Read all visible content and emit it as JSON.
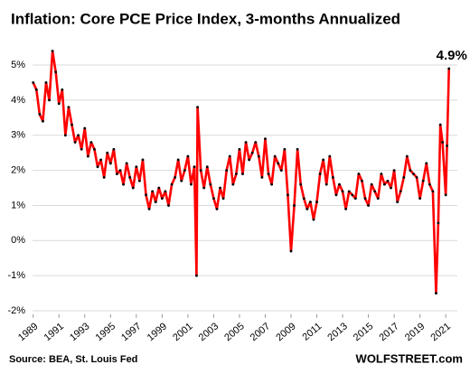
{
  "chart_data": {
    "type": "line",
    "title": "Inflation: Core PCE Price Index, 3-months Annualized",
    "annotation": "4.9%",
    "source": "Source: BEA, St. Louis Fed",
    "credit": "WOLFSTREET.com",
    "color": "#ff0000",
    "marker_color": "#000000",
    "grid": true,
    "xlim": [
      1988.95,
      2021.9
    ],
    "xticks": [
      1989,
      1991,
      1993,
      1995,
      1997,
      1999,
      2001,
      2003,
      2005,
      2007,
      2009,
      2011,
      2013,
      2015,
      2017,
      2019,
      2021
    ],
    "ylim": [
      -2.1,
      5.5
    ],
    "yticks": [
      {
        "value": -2,
        "label": "-2%"
      },
      {
        "value": -1,
        "label": "-1%"
      },
      {
        "value": 0,
        "label": "0%"
      },
      {
        "value": 1,
        "label": "1%"
      },
      {
        "value": 2,
        "label": "2%"
      },
      {
        "value": 3,
        "label": "3%"
      },
      {
        "value": 4,
        "label": "4%"
      },
      {
        "value": 5,
        "label": "5%"
      }
    ],
    "x": [
      1989.0,
      1989.25,
      1989.5,
      1989.75,
      1990.0,
      1990.25,
      1990.5,
      1990.75,
      1991.0,
      1991.25,
      1991.5,
      1991.75,
      1992.0,
      1992.25,
      1992.5,
      1992.75,
      1993.0,
      1993.25,
      1993.5,
      1993.75,
      1994.0,
      1994.25,
      1994.5,
      1994.75,
      1995.0,
      1995.25,
      1995.5,
      1995.75,
      1996.0,
      1996.25,
      1996.5,
      1996.75,
      1997.0,
      1997.25,
      1997.5,
      1997.75,
      1998.0,
      1998.25,
      1998.5,
      1998.75,
      1999.0,
      1999.25,
      1999.5,
      1999.75,
      2000.0,
      2000.25,
      2000.5,
      2000.75,
      2001.0,
      2001.25,
      2001.5,
      2001.67,
      2001.75,
      2002.0,
      2002.25,
      2002.5,
      2002.75,
      2003.0,
      2003.25,
      2003.5,
      2003.75,
      2004.0,
      2004.25,
      2004.5,
      2004.75,
      2005.0,
      2005.25,
      2005.5,
      2005.75,
      2006.0,
      2006.25,
      2006.5,
      2006.75,
      2007.0,
      2007.25,
      2007.5,
      2007.75,
      2008.0,
      2008.25,
      2008.5,
      2008.75,
      2009.0,
      2009.25,
      2009.5,
      2009.75,
      2010.0,
      2010.25,
      2010.5,
      2010.75,
      2011.0,
      2011.25,
      2011.5,
      2011.75,
      2012.0,
      2012.25,
      2012.5,
      2012.75,
      2013.0,
      2013.25,
      2013.5,
      2013.75,
      2014.0,
      2014.25,
      2014.5,
      2014.75,
      2015.0,
      2015.25,
      2015.5,
      2015.75,
      2016.0,
      2016.25,
      2016.5,
      2016.75,
      2017.0,
      2017.25,
      2017.5,
      2017.75,
      2018.0,
      2018.25,
      2018.5,
      2018.75,
      2019.0,
      2019.25,
      2019.5,
      2019.75,
      2020.0,
      2020.25,
      2020.42,
      2020.58,
      2020.75,
      2021.0,
      2021.1,
      2021.25
    ],
    "values": [
      4.5,
      4.3,
      3.6,
      3.4,
      4.5,
      4.0,
      5.4,
      4.8,
      3.9,
      4.3,
      3.0,
      3.8,
      3.3,
      2.8,
      3.0,
      2.6,
      3.2,
      2.4,
      2.8,
      2.6,
      2.1,
      2.3,
      1.8,
      2.5,
      2.2,
      2.6,
      1.9,
      2.0,
      1.6,
      2.2,
      1.8,
      1.5,
      2.1,
      1.7,
      2.3,
      1.3,
      0.9,
      1.4,
      1.1,
      1.5,
      1.2,
      1.4,
      1.0,
      1.6,
      1.8,
      2.3,
      1.7,
      2.0,
      2.4,
      1.6,
      2.1,
      -1.0,
      3.8,
      2.0,
      1.5,
      2.1,
      1.6,
      1.2,
      0.9,
      1.5,
      1.2,
      2.0,
      2.4,
      1.6,
      1.9,
      2.6,
      1.9,
      2.8,
      2.3,
      2.5,
      2.8,
      2.4,
      1.8,
      2.9,
      1.9,
      1.6,
      2.4,
      2.2,
      2.0,
      2.6,
      1.3,
      -0.3,
      1.0,
      2.6,
      1.6,
      1.2,
      0.9,
      1.1,
      0.6,
      1.1,
      1.9,
      2.3,
      1.6,
      2.4,
      1.8,
      1.3,
      1.6,
      1.4,
      0.9,
      1.4,
      1.3,
      1.2,
      1.9,
      1.7,
      1.2,
      1.0,
      1.6,
      1.4,
      1.2,
      1.9,
      1.6,
      1.7,
      1.5,
      2.0,
      1.1,
      1.4,
      1.8,
      2.4,
      2.0,
      1.9,
      1.8,
      1.2,
      1.7,
      2.2,
      1.6,
      1.4,
      -1.5,
      0.5,
      3.3,
      2.8,
      1.3,
      2.7,
      4.9
    ]
  }
}
